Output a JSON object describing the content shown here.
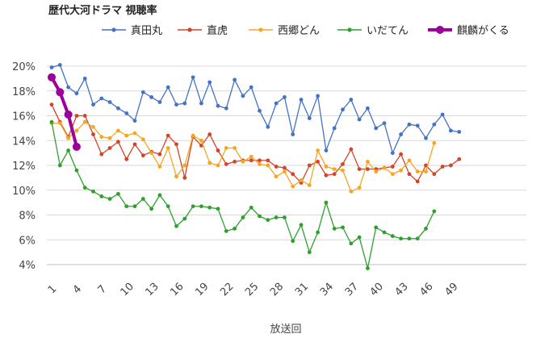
{
  "chart_data": {
    "type": "line",
    "title": "歴代大河ドラマ 視聴率",
    "xlabel": "放送回",
    "ylabel": "",
    "ylim": [
      4,
      20
    ],
    "xlim": [
      1,
      50
    ],
    "yticks": [
      "4%",
      "6%",
      "8%",
      "10%",
      "12%",
      "14%",
      "16%",
      "18%",
      "20%"
    ],
    "ytick_values": [
      4,
      6,
      8,
      10,
      12,
      14,
      16,
      18,
      20
    ],
    "xticks": [
      1,
      4,
      7,
      10,
      13,
      16,
      19,
      22,
      25,
      28,
      31,
      34,
      37,
      40,
      43,
      46,
      49
    ],
    "grid": true,
    "legend": "top",
    "series": [
      {
        "name": "真田丸",
        "color": "#4472C4",
        "values": [
          19.9,
          20.1,
          18.3,
          17.8,
          19.0,
          16.9,
          17.4,
          17.1,
          16.6,
          16.2,
          15.6,
          17.9,
          17.5,
          17.1,
          18.3,
          16.9,
          17.0,
          19.1,
          17.0,
          18.7,
          16.8,
          16.6,
          18.9,
          17.6,
          18.3,
          16.4,
          15.1,
          17.0,
          17.5,
          14.5,
          17.3,
          15.8,
          17.6,
          13.2,
          15.0,
          16.5,
          17.3,
          15.7,
          16.6,
          15.0,
          15.4,
          13.0,
          14.5,
          15.3,
          15.2,
          14.2,
          15.3,
          16.1,
          14.8,
          14.7
        ]
      },
      {
        "name": "直虎",
        "color": "#D6432B",
        "values": [
          16.9,
          15.5,
          14.3,
          16.0,
          16.0,
          14.5,
          12.9,
          13.4,
          13.9,
          12.5,
          13.7,
          12.8,
          13.1,
          12.9,
          14.4,
          13.7,
          11.0,
          14.3,
          13.6,
          14.5,
          13.2,
          12.1,
          12.3,
          12.4,
          12.4,
          12.4,
          12.4,
          11.9,
          11.8,
          11.3,
          10.6,
          12.0,
          12.3,
          11.2,
          11.3,
          12.1,
          13.3,
          11.7,
          11.7,
          11.7,
          11.8,
          11.9,
          12.9,
          11.3,
          10.7,
          12.0,
          11.3,
          11.9,
          12.0,
          12.5
        ]
      },
      {
        "name": "西郷どん",
        "color": "#F5A623",
        "values": [
          15.4,
          15.4,
          14.2,
          14.8,
          15.5,
          15.1,
          14.3,
          14.2,
          14.8,
          14.4,
          14.6,
          14.1,
          13.0,
          11.9,
          13.4,
          11.1,
          12.0,
          14.4,
          14.0,
          12.2,
          12.0,
          13.4,
          13.4,
          12.3,
          12.7,
          12.1,
          12.0,
          11.1,
          11.5,
          10.3,
          10.8,
          10.4,
          13.2,
          11.9,
          11.7,
          11.6,
          9.9,
          10.2,
          12.3,
          11.5,
          11.8,
          11.3,
          11.6,
          12.4,
          11.5,
          11.5,
          13.8
        ]
      },
      {
        "name": "いだてん",
        "color": "#2EA02E",
        "values": [
          15.5,
          12.0,
          13.2,
          11.6,
          10.2,
          9.9,
          9.5,
          9.3,
          9.7,
          8.7,
          8.7,
          9.3,
          8.5,
          9.6,
          8.7,
          7.1,
          7.7,
          8.7,
          8.7,
          8.6,
          8.5,
          6.7,
          6.9,
          7.8,
          8.6,
          7.9,
          7.6,
          7.8,
          7.8,
          5.9,
          7.2,
          5.0,
          6.6,
          9.0,
          6.9,
          7.0,
          5.7,
          6.2,
          3.7,
          7.0,
          6.6,
          6.3,
          6.1,
          6.1,
          6.1,
          6.9,
          8.3
        ]
      },
      {
        "name": "麒麟がくる",
        "color": "#9B009B",
        "values": [
          19.1,
          17.9,
          16.1,
          13.5
        ]
      }
    ]
  }
}
